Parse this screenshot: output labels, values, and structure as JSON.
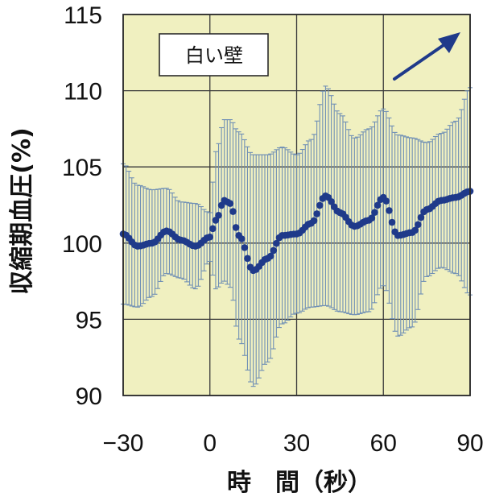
{
  "chart_data": {
    "type": "line",
    "title": "",
    "xlabel": "時　間（秒）",
    "ylabel": "収縮期血圧(%)",
    "xlim": [
      -30,
      90
    ],
    "ylim": [
      90,
      115
    ],
    "x_ticks": [
      -30,
      0,
      30,
      60,
      90
    ],
    "y_ticks": [
      90,
      95,
      100,
      105,
      110,
      115
    ],
    "x_tick_labels": [
      "−30",
      "0",
      "30",
      "60",
      "90"
    ],
    "y_tick_labels": [
      "90",
      "95",
      "100",
      "105",
      "110",
      "115"
    ],
    "grid": true,
    "annotation": "白い壁",
    "annotation_arrow": "up-right",
    "colors": {
      "background": "#f0f0c0",
      "series": "#1f3a8a",
      "error_bars": "#6f8fb5",
      "grid": "#3a3a3a"
    },
    "series": [
      {
        "x": [
          -30,
          -25,
          -20,
          -15,
          -10,
          -5,
          0,
          2,
          5,
          7,
          10,
          15,
          20,
          25,
          30,
          35,
          40,
          45,
          50,
          55,
          60,
          65,
          70,
          75,
          80,
          85,
          90
        ],
        "y": [
          100.6,
          99.8,
          100.0,
          100.8,
          100.2,
          99.8,
          100.4,
          101.5,
          102.8,
          102.6,
          100.5,
          98.2,
          99.0,
          100.5,
          100.6,
          101.3,
          103.1,
          102.0,
          101.1,
          101.5,
          103.0,
          100.5,
          100.7,
          102.2,
          102.8,
          103.0,
          103.4
        ],
        "error": [
          4.6,
          4.0,
          3.5,
          2.8,
          2.5,
          2.8,
          1.6,
          4.5,
          5.3,
          5.5,
          6.8,
          7.6,
          6.8,
          5.8,
          5.2,
          5.5,
          7.2,
          6.5,
          5.8,
          6.0,
          5.8,
          6.6,
          6.2,
          4.4,
          4.4,
          5.0,
          6.8
        ]
      }
    ]
  }
}
